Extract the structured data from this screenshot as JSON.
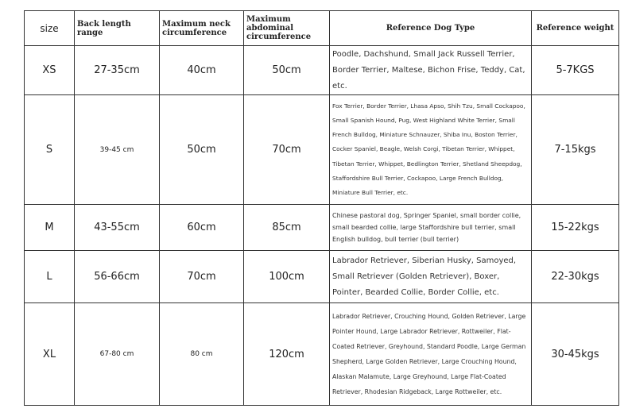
{
  "table": {
    "header": [
      "size",
      "Back length range",
      "Maximum neck circumference",
      "Maximum abdominal circumference",
      "Reference Dog Type",
      "Reference weight"
    ],
    "rows": [
      [
        "XS",
        "27-35cm",
        "40cm",
        "50cm",
        "Poodle, Dachshund, Small Jack Russell Terrier, Border Terrier, Maltese, Bichon Frise, Teddy, Cat, etc.",
        "5-7KGS"
      ],
      [
        "S",
        "39-45 cm",
        "50cm",
        "70cm",
        "Fox Terrier, Border Terrier, Lhasa Apso, Shih Tzu, Small Cockapoo, Small Spanish Hound, Pug, West Highland White Terrier, Small French Bulldog, Miniature Schnauzer, Shiba Inu, Boston Terrier, Cocker Spaniel, Beagle, Welsh Corgi, Tibetan Terrier, Whippet, Tibetan Terrier, Whippet, Bedlington Terrier, Shetland Sheepdog, Staffordshire Bull Terrier, Cockapoo, Large French Bulldog, Miniature Bull Terrier, etc.",
        "7-15kgs"
      ],
      [
        "M",
        "43-55cm",
        "60cm",
        "85cm",
        "Chinese pastoral dog, Springer Spaniel, small border collie, small bearded collie, large Staffordshire bull terrier, small English bulldog, bull terrier (bull terrier)",
        "15-22kgs"
      ],
      [
        "L",
        "56-66cm",
        "70cm",
        "100cm",
        "Labrador Retriever, Siberian Husky, Samoyed, Small Retriever (Golden Retriever), Boxer, Pointer, Bearded Collie, Border Collie, etc.",
        "22-30kgs"
      ],
      [
        "XL",
        "67-80 cm",
        "80 cm",
        "120cm",
        "Labrador Retriever, Crouching Hound, Golden Retriever, Large Pointer Hound, Large Labrador Retriever, Rottweiler, Flat-Coated Retriever, Greyhound, Standard Poodle, Large German Shepherd, Large Golden Retriever, Large Crouching Hound, Alaskan Malamute, Large Greyhound, Large Flat-Coated Retriever, Rhodesian Ridgeback, Large Rottweiler, etc.",
        "30-45kgs"
      ]
    ]
  }
}
